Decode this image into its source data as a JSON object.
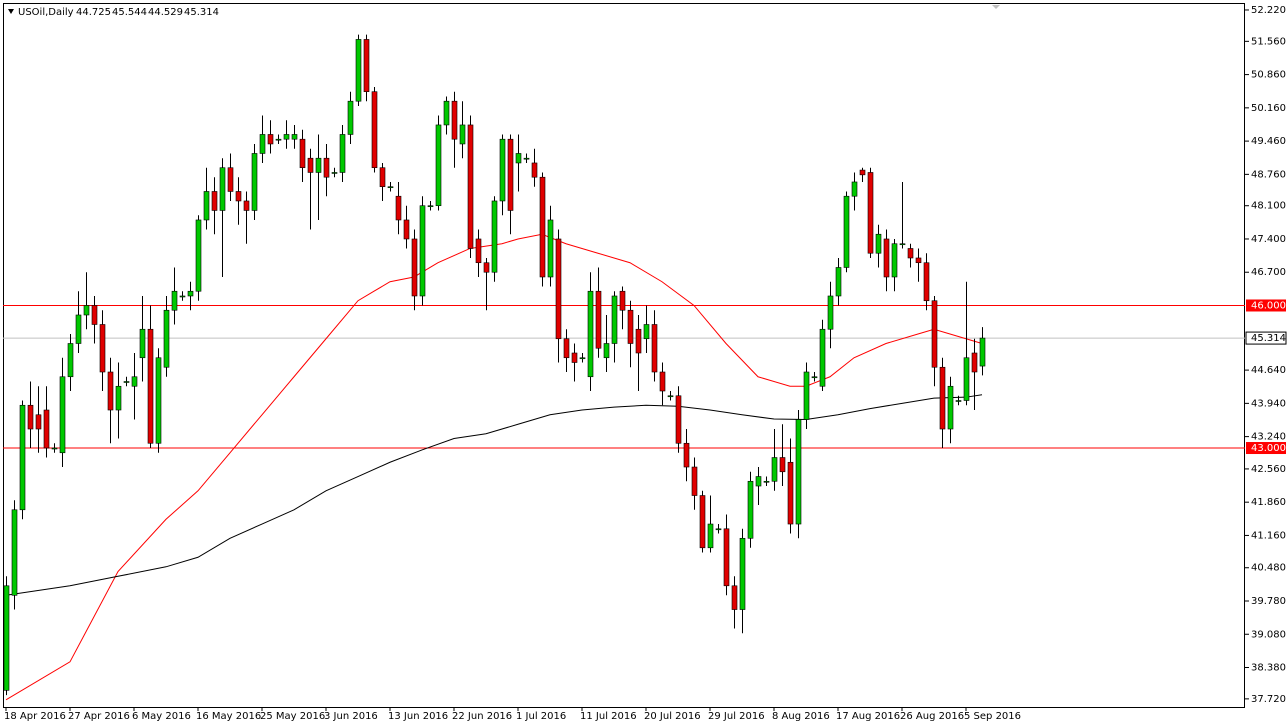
{
  "chart_data": {
    "type": "candlestick",
    "symbol": "USOil,Daily",
    "up_color": "#00c800",
    "down_color": "#e00000",
    "categories": [
      "18 Apr 2016",
      null,
      null,
      null,
      null,
      null,
      null,
      null,
      "27 Apr 2016",
      null,
      null,
      null,
      null,
      null,
      null,
      null,
      "6 May 2016",
      null,
      null,
      null,
      null,
      null,
      null,
      null,
      "16 May 2016",
      null,
      null,
      null,
      null,
      null,
      null,
      null,
      "25 May 2016",
      null,
      null,
      null,
      null,
      null,
      null,
      null,
      "3 Jun 2016",
      null,
      null,
      null,
      null,
      null,
      null,
      null,
      "13 Jun 2016",
      null,
      null,
      null,
      null,
      null,
      null,
      null,
      "22 Jun 2016",
      null,
      null,
      null,
      null,
      null,
      null,
      null,
      "1 Jul 2016",
      null,
      null,
      null,
      null,
      null,
      null,
      null,
      "11 Jul 2016",
      null,
      null,
      null,
      null,
      null,
      null,
      null,
      "20 Jul 2016",
      null,
      null,
      null,
      null,
      null,
      null,
      null,
      "29 Jul 2016",
      null,
      null,
      null,
      null,
      null,
      null,
      null,
      "8 Aug 2016",
      null,
      null,
      null,
      null,
      null,
      null,
      null,
      "17 Aug 2016",
      null,
      null,
      null,
      null,
      null,
      null,
      null,
      "26 Aug 2016",
      null,
      null,
      null,
      null,
      null,
      null,
      null,
      "5 Sep 2016",
      null,
      null
    ],
    "open": [
      37.9,
      39.9,
      41.7,
      43.9,
      43.7,
      43.8,
      43.0,
      42.9,
      44.5,
      45.2,
      45.8,
      46.0,
      45.6,
      44.6,
      43.8,
      44.4,
      44.3,
      44.9,
      45.5,
      43.1,
      44.7,
      45.9,
      46.2,
      46.2,
      46.3,
      47.8,
      48.4,
      48.0,
      48.9,
      48.4,
      48.2,
      48.0,
      49.2,
      49.6,
      49.5,
      49.5,
      49.5,
      49.5,
      49.1,
      48.8,
      49.1,
      48.8,
      48.8,
      49.6,
      50.3,
      51.6,
      50.5,
      48.9,
      48.5,
      48.3,
      47.8,
      47.4,
      46.2,
      48.1,
      48.1,
      49.8,
      50.3,
      49.4,
      49.8,
      47.4,
      46.9,
      46.7,
      48.2,
      49.5,
      49.0,
      49.1,
      49.0,
      48.7,
      46.6,
      47.4,
      45.3,
      45.0,
      44.9,
      44.5,
      46.3,
      44.9,
      45.2,
      46.3,
      45.9,
      45.5,
      45.3,
      45.6,
      44.6,
      44.1,
      44.1,
      43.1,
      42.6,
      42.0,
      40.9,
      41.3,
      41.3,
      40.1,
      39.6,
      41.1,
      42.2,
      42.3,
      42.3,
      42.8,
      42.7,
      41.4,
      43.6,
      44.5,
      44.3,
      45.5,
      46.2,
      46.8,
      48.3,
      48.85,
      48.8,
      47.1,
      47.4,
      46.6,
      47.3,
      47.2,
      47.0,
      46.9,
      46.1,
      44.7,
      43.4,
      44.0,
      44.0,
      45.0,
      44.725
    ],
    "high": [
      40.3,
      41.9,
      44.0,
      44.4,
      44.3,
      44.3,
      43.1,
      44.9,
      45.4,
      46.3,
      46.7,
      46.2,
      45.9,
      44.9,
      44.8,
      44.5,
      45.0,
      46.2,
      46.0,
      45.1,
      46.2,
      46.8,
      46.3,
      46.5,
      47.9,
      48.9,
      48.7,
      49.1,
      49.2,
      48.7,
      48.4,
      49.4,
      50.0,
      49.9,
      49.6,
      49.9,
      49.8,
      49.7,
      49.3,
      49.6,
      49.4,
      48.9,
      49.8,
      50.5,
      51.7,
      51.7,
      50.6,
      49.0,
      48.6,
      48.6,
      48.1,
      47.6,
      48.3,
      48.2,
      50.0,
      50.4,
      50.5,
      50.3,
      50.0,
      47.6,
      47.0,
      48.3,
      49.6,
      49.6,
      49.6,
      49.2,
      49.3,
      48.8,
      48.1,
      47.6,
      45.5,
      45.2,
      45.0,
      46.7,
      46.8,
      45.8,
      46.3,
      46.4,
      46.1,
      45.8,
      46.0,
      45.9,
      44.8,
      44.2,
      44.3,
      43.4,
      42.8,
      42.1,
      42.0,
      41.4,
      41.6,
      40.3,
      41.3,
      42.5,
      42.6,
      42.4,
      43.4,
      43.5,
      43.2,
      43.8,
      44.8,
      44.6,
      45.7,
      46.5,
      47.0,
      48.4,
      48.8,
      48.9,
      48.9,
      47.7,
      47.6,
      47.4,
      48.6,
      47.3,
      47.2,
      47.1,
      46.2,
      44.9,
      44.5,
      44.1,
      46.5,
      45.3,
      45.544
    ],
    "low": [
      37.8,
      39.6,
      41.5,
      43.0,
      42.9,
      42.8,
      42.9,
      42.6,
      44.2,
      45.0,
      45.5,
      45.2,
      44.2,
      43.1,
      43.2,
      44.3,
      43.6,
      44.4,
      43.0,
      42.9,
      44.5,
      45.6,
      46.1,
      45.9,
      46.1,
      47.6,
      47.5,
      46.6,
      48.2,
      47.7,
      47.3,
      47.8,
      49.0,
      49.2,
      49.4,
      49.3,
      49.3,
      48.6,
      47.6,
      47.8,
      48.3,
      48.7,
      48.6,
      49.4,
      50.2,
      50.3,
      48.8,
      48.2,
      48.4,
      47.5,
      47.2,
      45.9,
      46.0,
      48.0,
      48.0,
      49.6,
      48.9,
      49.1,
      47.0,
      46.6,
      45.9,
      46.5,
      47.9,
      47.5,
      48.4,
      49.0,
      48.5,
      46.4,
      46.4,
      44.8,
      44.6,
      44.4,
      44.8,
      44.2,
      44.9,
      44.6,
      44.8,
      45.5,
      44.7,
      44.2,
      45.0,
      44.4,
      43.9,
      44.0,
      42.9,
      42.3,
      41.7,
      40.8,
      40.8,
      41.2,
      39.9,
      39.2,
      39.1,
      40.9,
      41.8,
      42.2,
      42.1,
      42.2,
      41.2,
      41.1,
      43.4,
      44.4,
      44.2,
      45.1,
      46.0,
      46.7,
      48.0,
      48.6,
      47.0,
      46.8,
      46.3,
      46.3,
      47.2,
      46.8,
      46.5,
      45.9,
      44.3,
      43.0,
      43.1,
      43.9,
      43.9,
      43.8,
      44.529
    ],
    "close": [
      40.1,
      41.7,
      43.9,
      43.4,
      43.4,
      43.0,
      43.0,
      44.5,
      45.2,
      45.8,
      46.0,
      45.6,
      44.6,
      43.8,
      44.3,
      44.4,
      44.5,
      45.5,
      43.1,
      44.9,
      45.9,
      46.3,
      46.2,
      46.3,
      47.8,
      48.4,
      48.0,
      48.9,
      48.4,
      48.2,
      48.0,
      49.2,
      49.6,
      49.4,
      49.5,
      49.6,
      49.6,
      48.9,
      48.8,
      49.1,
      48.7,
      48.8,
      49.6,
      50.3,
      51.6,
      50.5,
      48.9,
      48.5,
      48.5,
      47.8,
      47.4,
      46.2,
      48.1,
      48.1,
      49.8,
      50.3,
      49.5,
      49.8,
      47.2,
      46.9,
      46.7,
      48.2,
      49.5,
      48.0,
      49.2,
      49.1,
      48.7,
      46.6,
      47.8,
      45.3,
      44.9,
      44.8,
      44.9,
      46.3,
      45.1,
      45.2,
      46.2,
      45.9,
      45.2,
      45.0,
      45.6,
      44.6,
      44.2,
      44.1,
      43.1,
      42.6,
      42.0,
      40.9,
      41.4,
      41.3,
      40.1,
      39.6,
      41.1,
      42.3,
      42.4,
      42.3,
      42.8,
      42.5,
      41.4,
      43.6,
      44.6,
      44.5,
      45.5,
      46.2,
      46.8,
      48.3,
      48.6,
      48.75,
      47.1,
      47.5,
      46.6,
      47.3,
      47.3,
      47.0,
      46.9,
      46.1,
      44.7,
      43.4,
      44.3,
      44.0,
      44.9,
      44.6,
      45.314
    ],
    "moving_averages": [
      {
        "color": "#ff0000",
        "x": [
          0,
          8,
          14,
          20,
          24,
          28,
          32,
          36,
          40,
          44,
          46,
          48,
          51,
          54,
          58,
          62,
          64,
          67,
          70,
          74,
          78,
          82,
          86,
          90,
          94,
          98,
          100,
          103,
          106,
          110,
          114,
          116,
          118,
          120,
          122
        ],
        "values": [
          37.7,
          38.5,
          40.4,
          41.5,
          42.1,
          42.9,
          43.7,
          44.5,
          45.3,
          46.1,
          46.3,
          46.5,
          46.6,
          46.9,
          47.2,
          47.3,
          47.4,
          47.5,
          47.3,
          47.1,
          46.9,
          46.5,
          46.0,
          45.2,
          44.5,
          44.3,
          44.3,
          44.5,
          44.9,
          45.2,
          45.4,
          45.5,
          45.4,
          45.3,
          45.2
        ]
      },
      {
        "color": "#000000",
        "x": [
          0,
          8,
          14,
          20,
          24,
          28,
          32,
          36,
          40,
          44,
          48,
          52,
          56,
          60,
          64,
          68,
          72,
          76,
          80,
          84,
          88,
          92,
          96,
          100,
          104,
          108,
          112,
          116,
          120,
          122
        ],
        "values": [
          39.9,
          40.1,
          40.3,
          40.5,
          40.7,
          41.1,
          41.4,
          41.7,
          42.1,
          42.4,
          42.7,
          42.96,
          43.2,
          43.3,
          43.5,
          43.7,
          43.8,
          43.86,
          43.9,
          43.88,
          43.8,
          43.7,
          43.61,
          43.6,
          43.7,
          43.83,
          43.94,
          44.05,
          44.07,
          44.12
        ]
      }
    ],
    "hlines": [
      {
        "value": 46,
        "label": "46.000",
        "color": "#ff0000"
      },
      {
        "value": 43,
        "label": "43.000",
        "color": "#ff0000"
      }
    ],
    "ylim": [
      37.17,
      52.43
    ],
    "yticks": [
      {
        "value": 52.22,
        "label": "52.220"
      },
      {
        "value": 51.56,
        "label": "51.560"
      },
      {
        "value": 50.86,
        "label": "50.860"
      },
      {
        "value": 50.16,
        "label": "50.160"
      },
      {
        "value": 49.46,
        "label": "49.460"
      },
      {
        "value": 48.76,
        "label": "48.760"
      },
      {
        "value": 48.1,
        "label": "48.100"
      },
      {
        "value": 47.4,
        "label": "47.400"
      },
      {
        "value": 46.7,
        "label": "46.700"
      },
      {
        "value": 44.64,
        "label": "44.640"
      },
      {
        "value": 43.94,
        "label": "43.940"
      },
      {
        "value": 43.24,
        "label": "43.240"
      },
      {
        "value": 42.56,
        "label": "42.560"
      },
      {
        "value": 41.86,
        "label": "41.860"
      },
      {
        "value": 41.16,
        "label": "41.160"
      },
      {
        "value": 40.48,
        "label": "40.480"
      },
      {
        "value": 39.78,
        "label": "39.780"
      },
      {
        "value": 39.08,
        "label": "39.080"
      },
      {
        "value": 38.38,
        "label": "38.380"
      },
      {
        "value": 37.72,
        "label": "37.720"
      }
    ]
  }
}
